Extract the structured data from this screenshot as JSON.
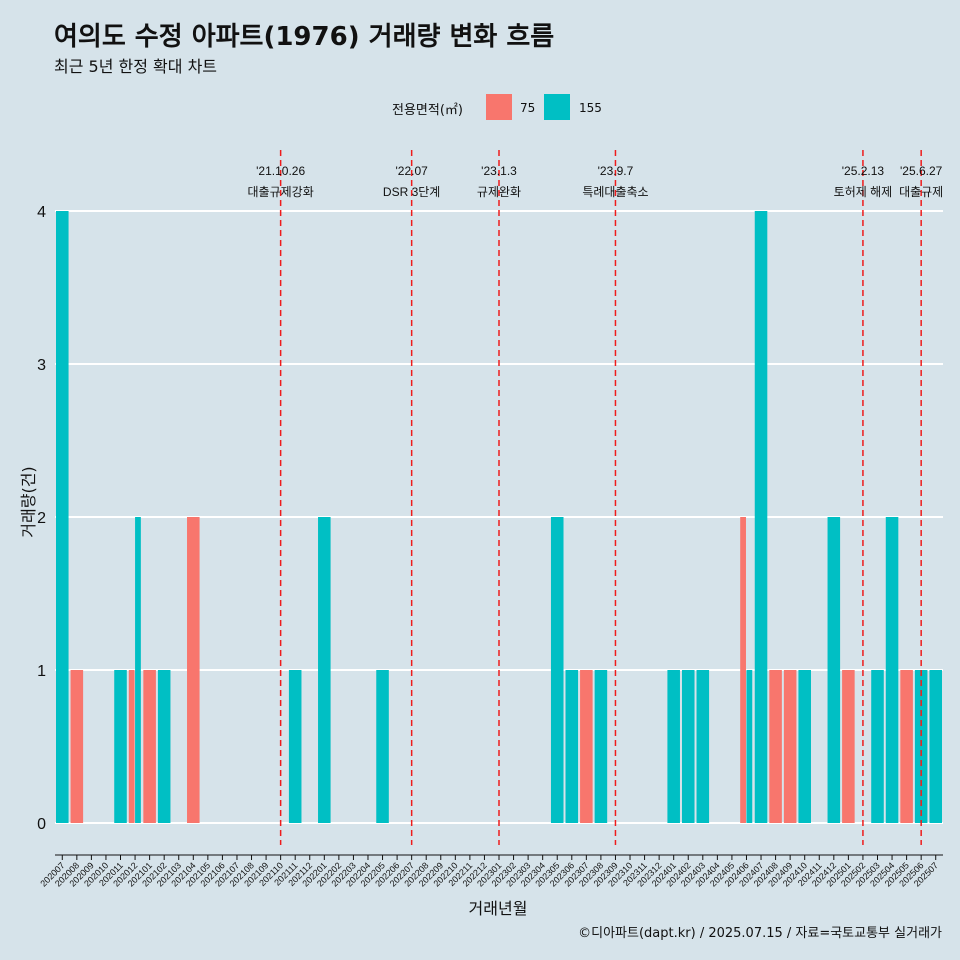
{
  "title": "여의도 수정 아파트(1976) 거래량 변화 흐름",
  "subtitle": "최근 5년 한정 확대 차트",
  "legend_title": "전용면적(㎡)",
  "caption": "©디아파트(dapt.kr) / 2025.07.15 / 자료=국토교통부 실거래가",
  "colors": {
    "75": "#f8766d",
    "155": "#00bfc4",
    "background": "#d6e3ea",
    "event_line": "#ee1c1c"
  },
  "chart_data": {
    "type": "bar",
    "xlabel": "거래년월",
    "ylabel": "거래량(건)",
    "ylim": [
      0,
      4
    ],
    "yticks": [
      0,
      1,
      2,
      3,
      4
    ],
    "grid": "horizontal major lines",
    "legend_position": "top",
    "categories": [
      "202007",
      "202008",
      "202009",
      "202010",
      "202011",
      "202012",
      "202101",
      "202102",
      "202103",
      "202104",
      "202105",
      "202106",
      "202107",
      "202108",
      "202109",
      "202110",
      "202111",
      "202112",
      "202201",
      "202202",
      "202203",
      "202204",
      "202205",
      "202206",
      "202207",
      "202208",
      "202209",
      "202210",
      "202211",
      "202212",
      "202301",
      "202302",
      "202303",
      "202304",
      "202305",
      "202306",
      "202307",
      "202308",
      "202309",
      "202310",
      "202311",
      "202312",
      "202401",
      "202402",
      "202403",
      "202404",
      "202405",
      "202406",
      "202407",
      "202408",
      "202409",
      "202410",
      "202411",
      "202412",
      "202501",
      "202502",
      "202503",
      "202504",
      "202505",
      "202506",
      "202507"
    ],
    "series": [
      {
        "name": "75",
        "color": "#f8766d",
        "values": [
          0,
          1,
          0,
          0,
          0,
          1,
          1,
          0,
          0,
          2,
          0,
          0,
          0,
          0,
          0,
          0,
          0,
          0,
          0,
          0,
          0,
          0,
          0,
          0,
          0,
          0,
          0,
          0,
          0,
          0,
          0,
          0,
          0,
          0,
          0,
          0,
          1,
          0,
          0,
          0,
          0,
          0,
          0,
          0,
          0,
          0,
          0,
          2,
          0,
          1,
          1,
          0,
          0,
          0,
          1,
          0,
          0,
          0,
          1,
          0,
          0
        ]
      },
      {
        "name": "155",
        "color": "#00bfc4",
        "values": [
          4,
          0,
          0,
          0,
          1,
          2,
          0,
          1,
          0,
          0,
          0,
          0,
          0,
          0,
          0,
          0,
          1,
          0,
          2,
          0,
          0,
          0,
          1,
          0,
          0,
          0,
          0,
          0,
          0,
          0,
          0,
          0,
          0,
          0,
          2,
          1,
          0,
          1,
          0,
          0,
          0,
          0,
          1,
          1,
          1,
          0,
          0,
          1,
          4,
          0,
          0,
          1,
          0,
          2,
          0,
          0,
          1,
          2,
          0,
          1,
          1
        ]
      }
    ],
    "events": [
      {
        "date": "'21.10.26",
        "label": "대출규제강화",
        "position": 15.5
      },
      {
        "date": "'22.07",
        "label": "DSR 3단계",
        "position": 24.5
      },
      {
        "date": "'23.1.3",
        "label": "규제완화",
        "position": 30.5
      },
      {
        "date": "'23.9.7",
        "label": "특례대출축소",
        "position": 38.5
      },
      {
        "date": "'25.2.13",
        "label": "토허제 해제",
        "position": 55.5
      },
      {
        "date": "'25.6.27",
        "label": "대출규제",
        "position": 59.5
      }
    ]
  }
}
